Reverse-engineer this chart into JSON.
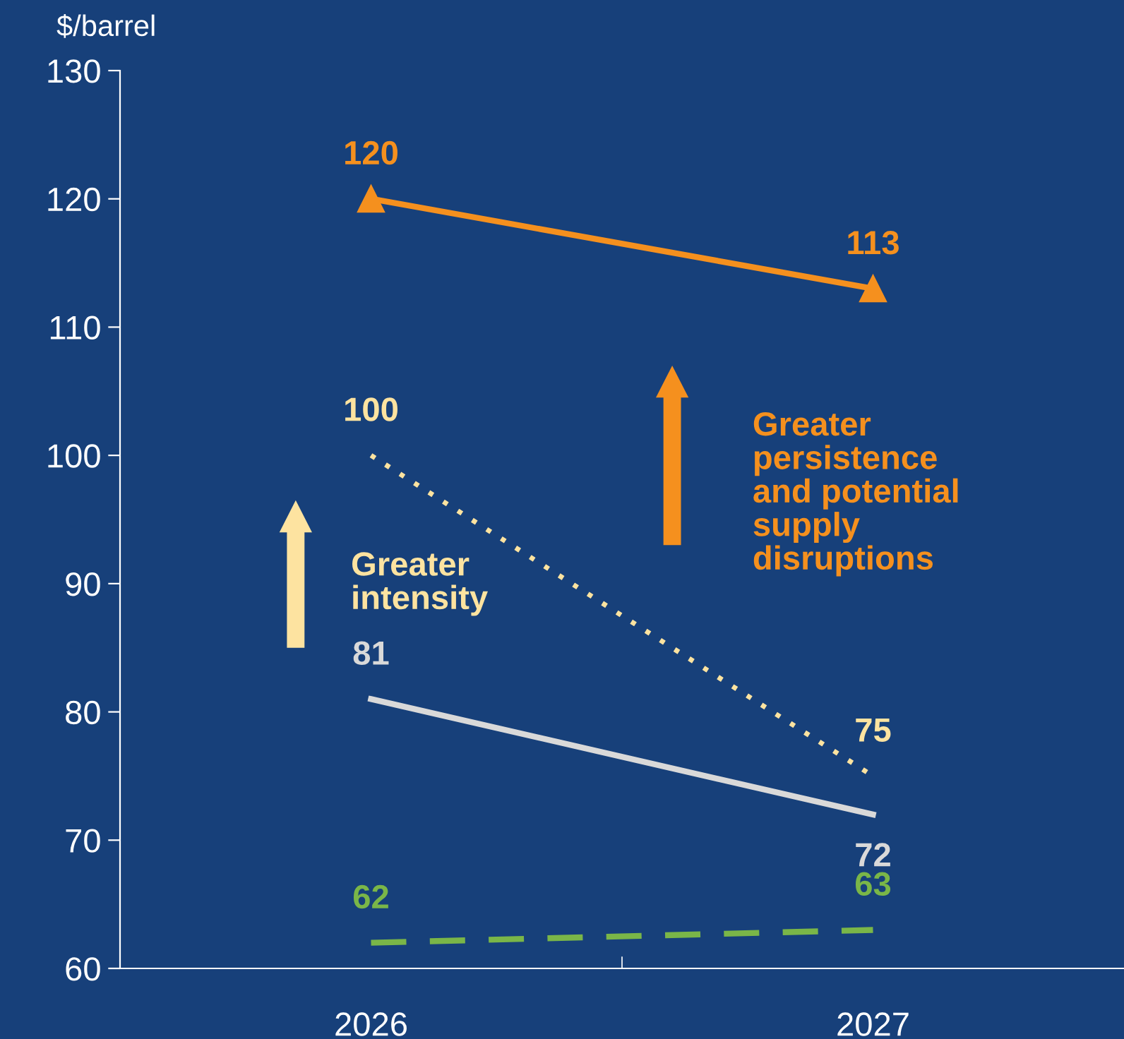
{
  "chart_data": {
    "type": "line",
    "ylabel": "$/barrel",
    "categories": [
      "2026",
      "2027"
    ],
    "series": [
      {
        "color": "#f5901e",
        "values": [
          120,
          113
        ],
        "marker": "triangle",
        "line_style": "solid"
      },
      {
        "color": "#fde3a0",
        "values": [
          100,
          75
        ],
        "marker": "none",
        "line_style": "dotted"
      },
      {
        "color": "#d9d9d9",
        "values": [
          81,
          72
        ],
        "marker": "none",
        "line_style": "solid"
      },
      {
        "color": "#7ab648",
        "values": [
          62,
          63
        ],
        "marker": "none",
        "line_style": "dashed"
      }
    ],
    "ylim": [
      60,
      130
    ],
    "yticks": [
      60,
      70,
      80,
      90,
      100,
      110,
      120,
      130
    ],
    "data_labels": true,
    "grid": false,
    "legend": false,
    "annotations": [
      "Greater\nintensity",
      "Greater\npersistence\nand potential\nsupply\ndisruptions"
    ]
  }
}
